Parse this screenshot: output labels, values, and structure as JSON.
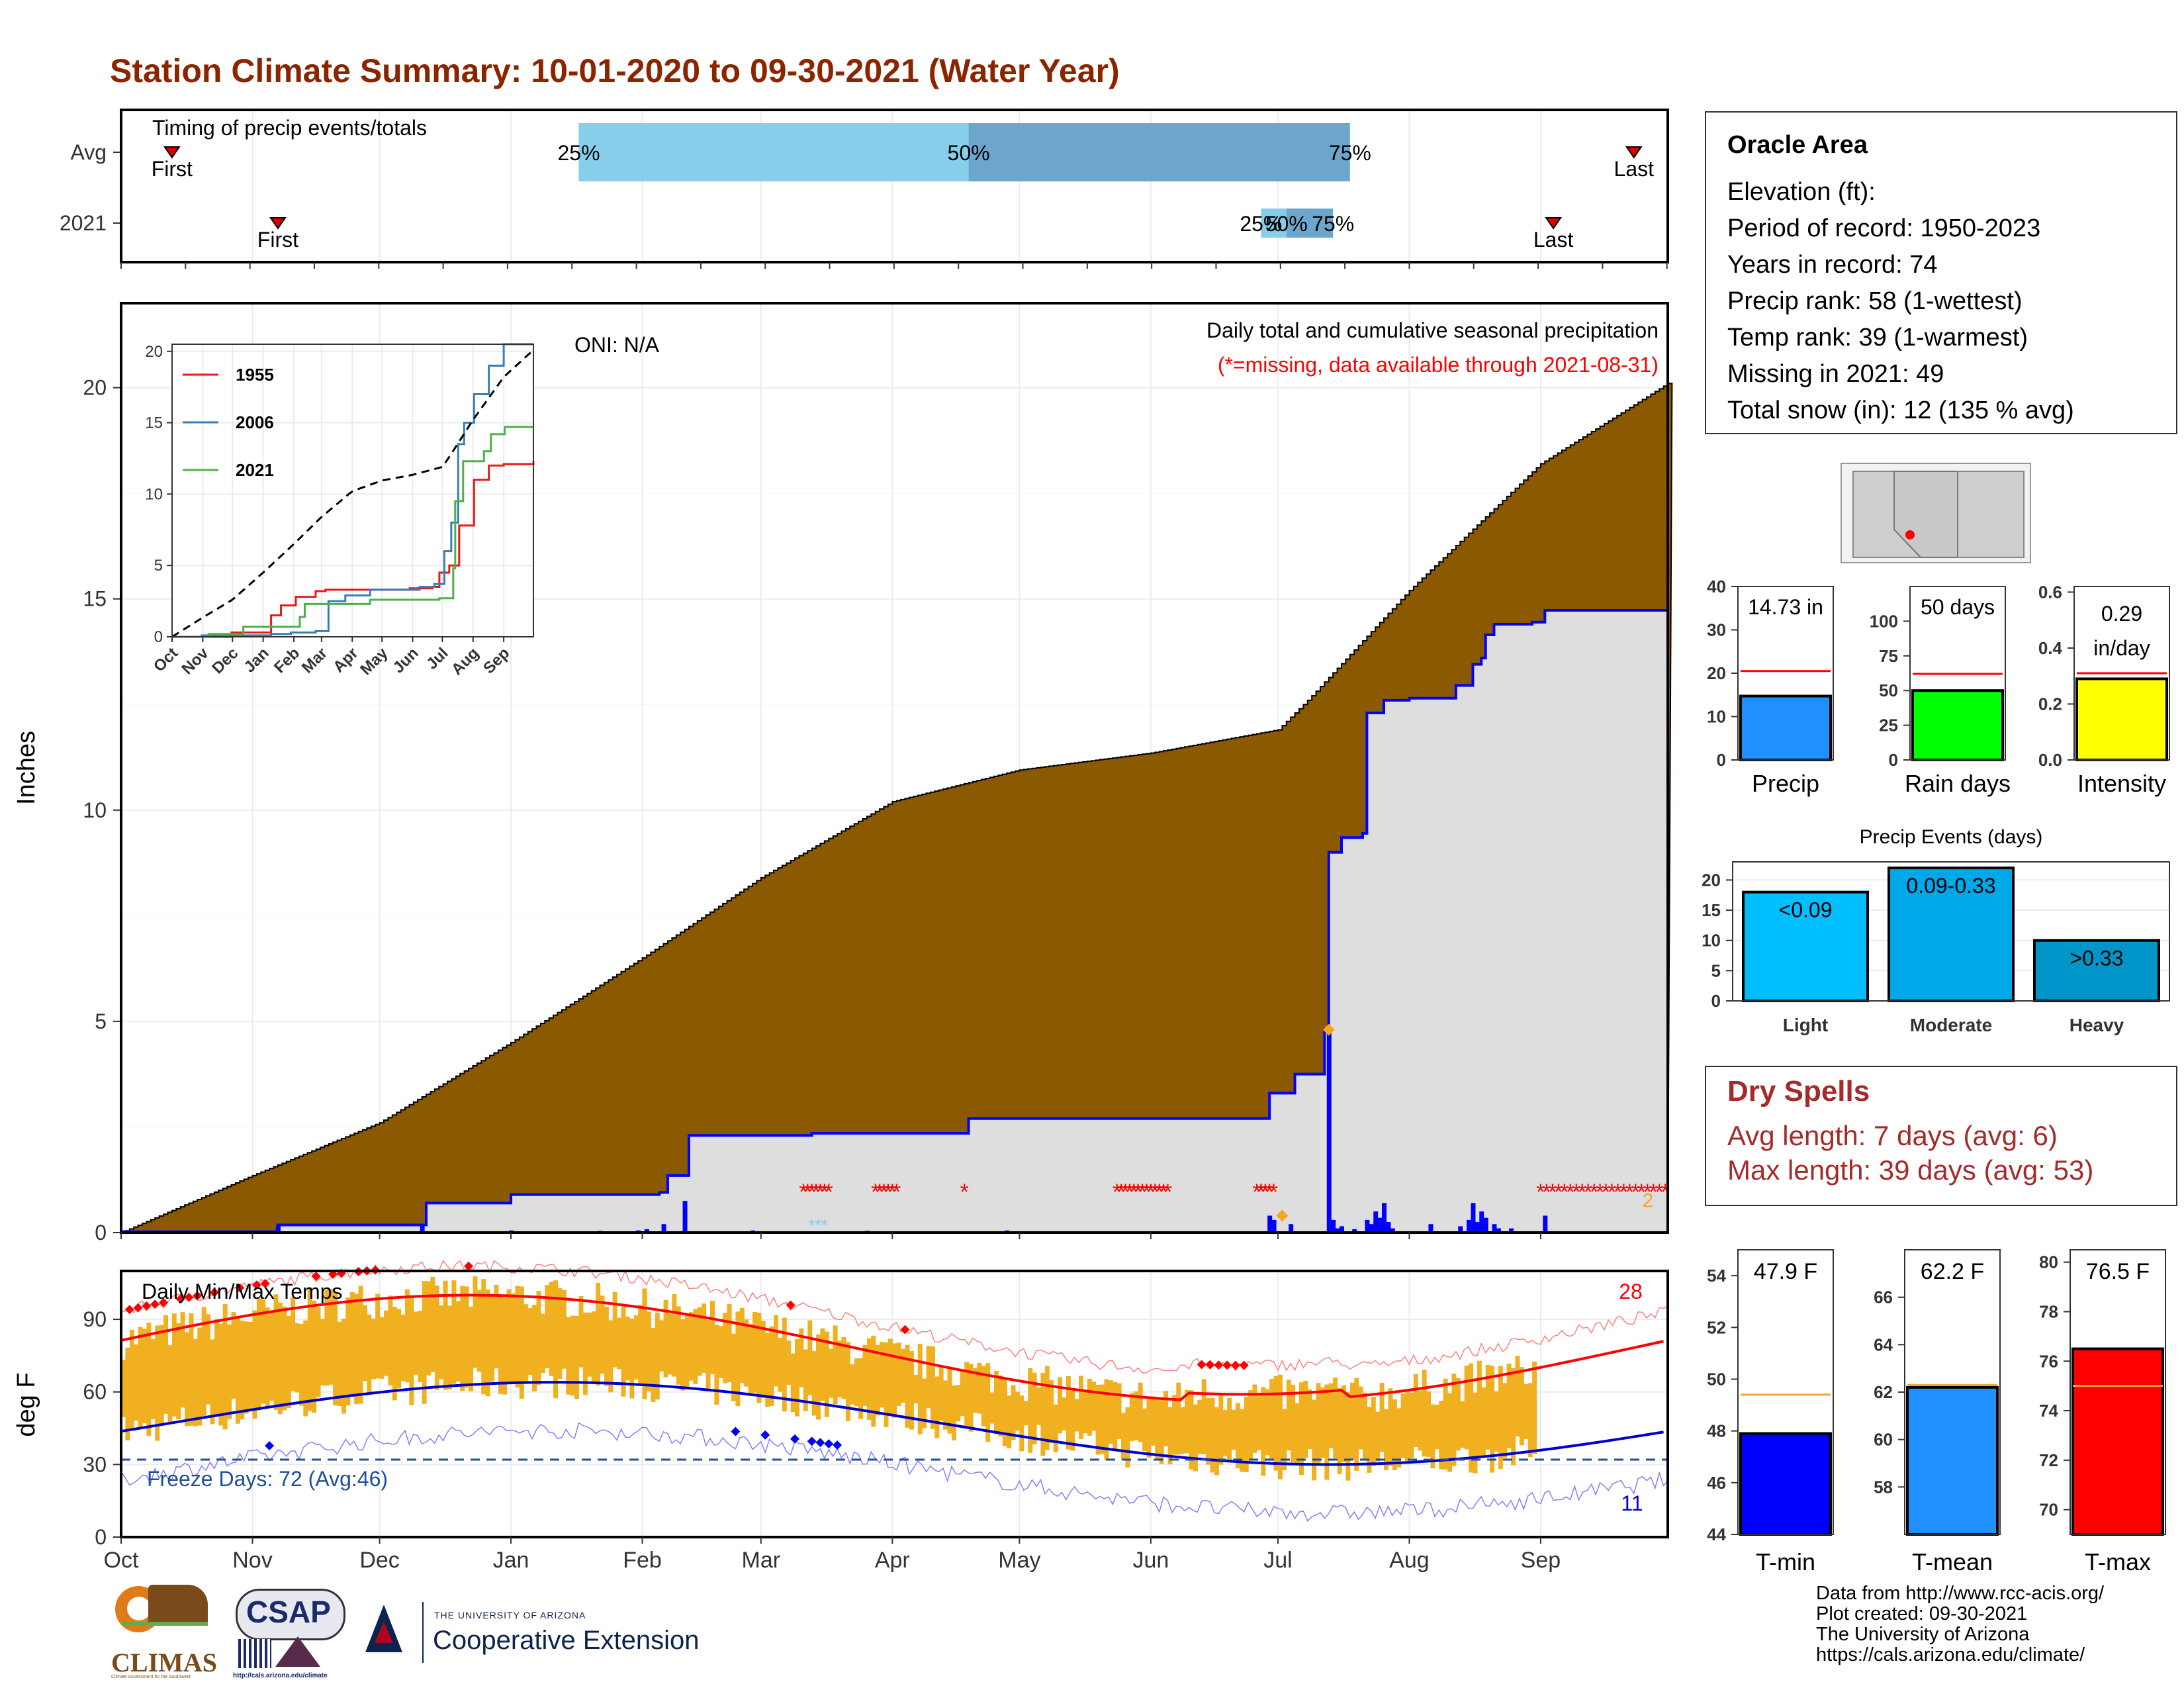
{
  "title": "Station Climate Summary: 10-01-2020 to 09-30-2021 (Water Year)",
  "timing": {
    "panel_label": "Timing of precip events/totals",
    "rows": [
      "Avg",
      "2021"
    ],
    "avg": {
      "first_day": 12,
      "p25_day": 108,
      "p50_day": 200,
      "p75_day": 290,
      "last_day": 357,
      "first_label": "First",
      "last_label": "Last",
      "p25_label": "25%",
      "p50_label": "50%",
      "p75_label": "75%"
    },
    "y2021": {
      "first_day": 37,
      "p25_day": 269,
      "p50_day": 275,
      "p75_day": 286,
      "last_day": 338,
      "first_label": "First",
      "last_label": "Last",
      "p25_label": "25%",
      "p50_label": "50%",
      "p75_label": "75%"
    }
  },
  "precip_panel": {
    "ylabel": "Inches",
    "yticks": [
      "0",
      "5",
      "10",
      "15",
      "20"
    ],
    "ylim": [
      0,
      22
    ],
    "oni": "ONI: N/A",
    "legend_line1": "Daily total and cumulative seasonal precipitation",
    "legend_line2": "(*=missing, data available through 2021-08-31)",
    "missing_count": "2",
    "colors": {
      "avg_cum": "#8B5A00",
      "obs_cum": "#DEDEDE",
      "daily": "#0000FF",
      "missing": "#FF0000"
    }
  },
  "inset": {
    "yticks": [
      "0",
      "5",
      "10",
      "15",
      "20"
    ],
    "xticks": [
      "Oct",
      "Nov",
      "Dec",
      "Jan",
      "Feb",
      "Mar",
      "Apr",
      "May",
      "Jun",
      "Jul",
      "Aug",
      "Sep"
    ],
    "legend": [
      {
        "name": "1955",
        "color": "#E41A1C"
      },
      {
        "name": "2006",
        "color": "#377EB8"
      },
      {
        "name": "2021",
        "color": "#4DAF4A"
      }
    ]
  },
  "temp_panel": {
    "ylabel": "deg F",
    "label": "Daily Min/Max Temps",
    "yticks": [
      "0",
      "30",
      "60",
      "90"
    ],
    "ylim": [
      0,
      110
    ],
    "freeze_label": "Freeze Days: 72 (Avg:46)",
    "freeze_threshold": 32,
    "max_record_count": "28",
    "min_record_count": "11",
    "xticks": [
      "Oct",
      "Nov",
      "Dec",
      "Jan",
      "Feb",
      "Mar",
      "Apr",
      "May",
      "Jun",
      "Jul",
      "Aug",
      "Sep"
    ]
  },
  "station": {
    "name": "Oracle Area",
    "elevation": "Elevation (ft):",
    "period": "Period of record: 1950-2023",
    "years": "Years in record: 74",
    "precip_rank": "Precip rank: 58 (1-wettest)",
    "temp_rank": "Temp rank: 39 (1-warmest)",
    "missing": "Missing in 2021: 49",
    "snow": "Total snow (in): 12 (135 % avg)"
  },
  "stat_bars": [
    {
      "label": "Precip",
      "value_label": "14.73 in",
      "value": 14.73,
      "avg": 20.5,
      "ylim": [
        0,
        40
      ],
      "yticks": [
        "0",
        "10",
        "20",
        "30",
        "40"
      ],
      "tickvals": [
        0,
        10,
        20,
        30,
        40
      ],
      "color": "#1E90FF",
      "avg_color": "#FF0000"
    },
    {
      "label": "Rain days",
      "value_label": "50 days",
      "value": 50,
      "avg": 62,
      "ylim": [
        0,
        125
      ],
      "yticks": [
        "0",
        "25",
        "50",
        "75",
        "100"
      ],
      "tickvals": [
        0,
        25,
        50,
        75,
        100
      ],
      "color": "#00FF00",
      "avg_color": "#FF0000"
    },
    {
      "label": "Intensity",
      "value_label": "0.29 in/day",
      "value": 0.29,
      "avg": 0.31,
      "ylim": [
        0,
        0.62
      ],
      "yticks": [
        "0.0",
        "0.2",
        "0.4",
        "0.6"
      ],
      "tickvals": [
        0,
        0.2,
        0.4,
        0.6
      ],
      "color": "#FFFF00",
      "avg_color": "#FF0000"
    }
  ],
  "precip_events": {
    "title": "Precip Events (days)",
    "categories": [
      "Light",
      "Moderate",
      "Heavy"
    ],
    "bar_labels": [
      "<0.09",
      "0.09-0.33",
      ">0.33"
    ],
    "values": [
      18,
      22,
      10
    ],
    "yticks": [
      "0",
      "5",
      "10",
      "15",
      "20"
    ],
    "ylim": [
      0,
      23
    ],
    "colors": [
      "#00BFFF",
      "#00A8E8",
      "#0095C8"
    ]
  },
  "dry_spells": {
    "title": "Dry Spells",
    "avg_length": "Avg length: 7 days (avg: 6)",
    "max_length": "Max length: 39 days (avg: 53)"
  },
  "temp_bars": [
    {
      "label": "T-min",
      "value_label": "47.9 F",
      "value": 47.9,
      "avg": 49.4,
      "ylim": [
        44,
        55
      ],
      "yticks": [
        "44",
        "46",
        "48",
        "50",
        "52",
        "54"
      ],
      "tickvals": [
        44,
        46,
        48,
        50,
        52,
        54
      ],
      "color": "#0000FF"
    },
    {
      "label": "T-mean",
      "value_label": "62.2 F",
      "value": 62.2,
      "avg": 62.3,
      "ylim": [
        56,
        68
      ],
      "yticks": [
        "58",
        "60",
        "62",
        "64",
        "66"
      ],
      "tickvals": [
        58,
        60,
        62,
        64,
        66
      ],
      "color": "#1E90FF"
    },
    {
      "label": "T-max",
      "value_label": "76.5 F",
      "value": 76.5,
      "avg": 75.0,
      "ylim": [
        69,
        80.5
      ],
      "yticks": [
        "70",
        "72",
        "74",
        "76",
        "78",
        "80"
      ],
      "tickvals": [
        70,
        72,
        74,
        76,
        78,
        80
      ],
      "color": "#FF0000"
    }
  ],
  "credits": [
    "Data from http://www.rcc-acis.org/",
    "Plot created: 09-30-2021",
    "The University of Arizona",
    "https://cals.arizona.edu/climate/"
  ],
  "logos": {
    "climas": "CLIMAS",
    "climas_sub": "Climate Assessment for the Southwest",
    "csap": "CSAP",
    "csap_url": "http://cals.arizona.edu/climate",
    "ua_small": "THE UNIVERSITY OF ARIZONA",
    "ua_big": "Cooperative Extension"
  }
}
